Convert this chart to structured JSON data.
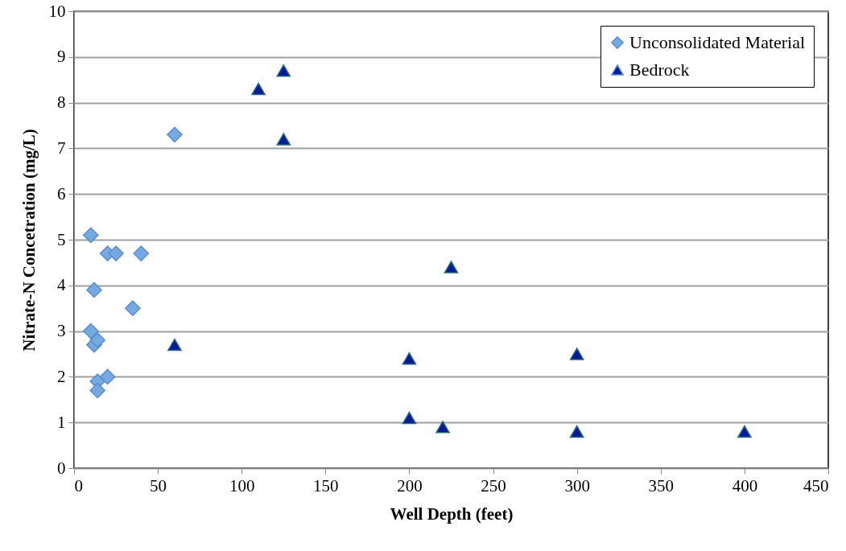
{
  "chart_data": {
    "type": "scatter",
    "xlabel": "Well Depth (feet)",
    "ylabel": "Nitrate-N Concetration (mg/L)",
    "xlim": [
      0,
      450
    ],
    "xticks": [
      0,
      50,
      100,
      150,
      200,
      250,
      300,
      350,
      400,
      450
    ],
    "ylim": [
      0,
      10
    ],
    "yticks": [
      0,
      1,
      2,
      3,
      4,
      5,
      6,
      7,
      8,
      9,
      10
    ],
    "grid": "y",
    "legend": "top right",
    "series": [
      {
        "name": "Unconsolidated Material",
        "color": "#74a9e2",
        "marker": "diamond",
        "x": [
          10,
          20,
          25,
          40,
          12,
          35,
          10,
          12,
          14,
          14,
          20,
          14,
          60
        ],
        "values": [
          5.1,
          4.7,
          4.7,
          4.7,
          3.9,
          3.5,
          3.0,
          2.7,
          2.8,
          1.9,
          2.0,
          1.7,
          7.3
        ]
      },
      {
        "name": "Bedrock",
        "color": "#001a9c",
        "marker": "triangle",
        "x": [
          110,
          125,
          125,
          60,
          225,
          200,
          300,
          200,
          220,
          300,
          400
        ],
        "values": [
          8.3,
          8.7,
          7.2,
          2.7,
          4.4,
          2.4,
          2.5,
          1.1,
          0.9,
          0.8,
          0.8
        ]
      }
    ]
  }
}
